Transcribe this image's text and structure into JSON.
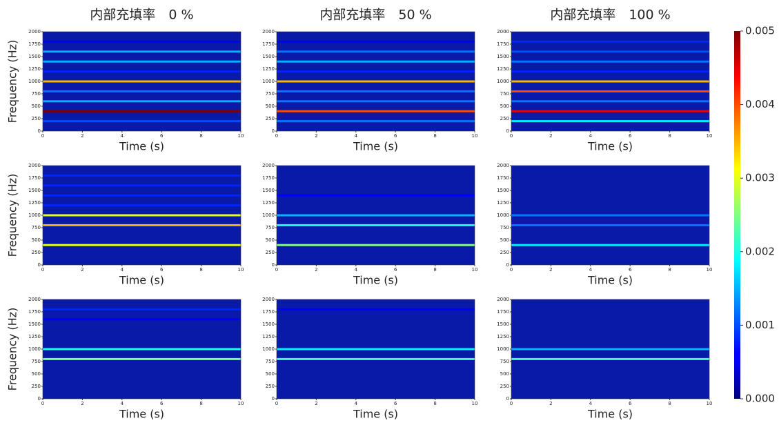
{
  "chart_data": [
    {
      "type": "heatmap",
      "title": "内部充填率　0 %",
      "xlabel": "Time (s)",
      "ylabel": "Frequency (Hz)",
      "xlim": [
        0,
        10
      ],
      "xticks": [
        0,
        2,
        4,
        6,
        8,
        10
      ],
      "ylim": [
        0,
        2000
      ],
      "yticks": [
        0,
        250,
        500,
        750,
        1000,
        1250,
        1500,
        1750,
        2000
      ],
      "bands": {
        "frequency": [
          200,
          400,
          600,
          800,
          1000,
          1200,
          1400,
          1600,
          1800
        ],
        "level": [
          0.001,
          0.005,
          0.0015,
          0.0012,
          0.0035,
          0.0008,
          0.0015,
          0.0015,
          0.0006
        ]
      }
    },
    {
      "type": "heatmap",
      "title": "内部充填率　50 %",
      "xlabel": "Time (s)",
      "xlim": [
        0,
        10
      ],
      "xticks": [
        0,
        2,
        4,
        6,
        8,
        10
      ],
      "ylim": [
        0,
        2000
      ],
      "yticks": [
        0,
        250,
        500,
        750,
        1000,
        1250,
        1500,
        1750,
        2000
      ],
      "bands": {
        "frequency": [
          200,
          400,
          600,
          800,
          1000,
          1200,
          1400,
          1600,
          1800
        ],
        "level": [
          0.0012,
          0.004,
          0.0012,
          0.0012,
          0.0035,
          0.0008,
          0.0015,
          0.0012,
          0.0006
        ]
      }
    },
    {
      "type": "heatmap",
      "title": "内部充填率　100 %",
      "xlabel": "Time (s)",
      "xlim": [
        0,
        10
      ],
      "xticks": [
        0,
        2,
        4,
        6,
        8,
        10
      ],
      "ylim": [
        0,
        2000
      ],
      "yticks": [
        0,
        250,
        500,
        750,
        1000,
        1250,
        1500,
        1750,
        2000
      ],
      "bands": {
        "frequency": [
          200,
          400,
          600,
          800,
          1000,
          1200,
          1400,
          1600,
          1800
        ],
        "level": [
          0.0018,
          0.0045,
          0.0012,
          0.004,
          0.0035,
          0.0008,
          0.0012,
          0.001,
          0.0008
        ]
      }
    },
    {
      "type": "heatmap",
      "xlabel": "Time (s)",
      "ylabel": "Frequency (Hz)",
      "xlim": [
        0,
        10
      ],
      "xticks": [
        0,
        2,
        4,
        6,
        8,
        10
      ],
      "ylim": [
        0,
        2000
      ],
      "yticks": [
        0,
        250,
        500,
        750,
        1000,
        1250,
        1500,
        1750,
        2000
      ],
      "bands": {
        "frequency": [
          400,
          800,
          1000,
          1200,
          1400,
          1600,
          1800
        ],
        "level": [
          0.003,
          0.0035,
          0.003,
          0.0008,
          0.0008,
          0.0008,
          0.0008
        ]
      }
    },
    {
      "type": "heatmap",
      "xlabel": "Time (s)",
      "xlim": [
        0,
        10
      ],
      "xticks": [
        0,
        2,
        4,
        6,
        8,
        10
      ],
      "ylim": [
        0,
        2000
      ],
      "yticks": [
        0,
        250,
        500,
        750,
        1000,
        1250,
        1500,
        1750,
        2000
      ],
      "bands": {
        "frequency": [
          400,
          800,
          1000,
          1400
        ],
        "level": [
          0.0025,
          0.002,
          0.0015,
          0.0006
        ]
      }
    },
    {
      "type": "heatmap",
      "xlabel": "Time (s)",
      "xlim": [
        0,
        10
      ],
      "xticks": [
        0,
        2,
        4,
        6,
        8,
        10
      ],
      "ylim": [
        0,
        2000
      ],
      "yticks": [
        0,
        250,
        500,
        750,
        1000,
        1250,
        1500,
        1750,
        2000
      ],
      "bands": {
        "frequency": [
          400,
          800,
          1000
        ],
        "level": [
          0.0018,
          0.0012,
          0.0012
        ]
      }
    },
    {
      "type": "heatmap",
      "xlabel": "Time (s)",
      "ylabel": "Frequency (Hz)",
      "xlim": [
        0,
        10
      ],
      "xticks": [
        0,
        2,
        4,
        6,
        8,
        10
      ],
      "ylim": [
        0,
        2000
      ],
      "yticks": [
        0,
        250,
        500,
        750,
        1000,
        1250,
        1500,
        1750,
        2000
      ],
      "bands": {
        "frequency": [
          800,
          1000,
          1600,
          1800
        ],
        "level": [
          0.0025,
          0.002,
          0.0006,
          0.0008
        ]
      }
    },
    {
      "type": "heatmap",
      "xlabel": "Time (s)",
      "xlim": [
        0,
        10
      ],
      "xticks": [
        0,
        2,
        4,
        6,
        8,
        10
      ],
      "ylim": [
        0,
        2000
      ],
      "yticks": [
        0,
        250,
        500,
        750,
        1000,
        1250,
        1500,
        1750,
        2000
      ],
      "bands": {
        "frequency": [
          800,
          1000,
          1800
        ],
        "level": [
          0.0022,
          0.0018,
          0.0006
        ]
      }
    },
    {
      "type": "heatmap",
      "xlabel": "Time (s)",
      "xlim": [
        0,
        10
      ],
      "xticks": [
        0,
        2,
        4,
        6,
        8,
        10
      ],
      "ylim": [
        0,
        2000
      ],
      "yticks": [
        0,
        250,
        500,
        750,
        1000,
        1250,
        1500,
        1750,
        2000
      ],
      "bands": {
        "frequency": [
          800,
          1000
        ],
        "level": [
          0.0022,
          0.0015
        ]
      }
    }
  ],
  "colorbar": {
    "lim": [
      0,
      0.005
    ],
    "ticks": [
      {
        "value": 0,
        "label": "0.000"
      },
      0.001,
      0.002,
      0.003,
      0.004,
      0.005
    ]
  }
}
